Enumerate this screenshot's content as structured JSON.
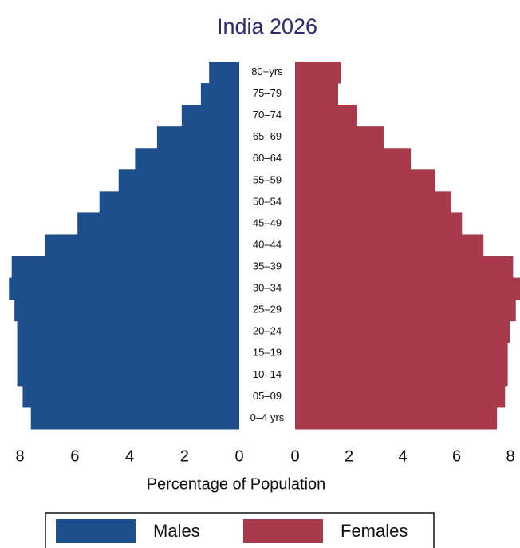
{
  "chart_data": {
    "type": "population_pyramid",
    "title": "India 2026",
    "categories": [
      "80+yrs",
      "75–79",
      "70–74",
      "65–69",
      "60–64",
      "55–59",
      "50–54",
      "45–49",
      "40–44",
      "35–39",
      "30–34",
      "25–29",
      "20–24",
      "15–19",
      "10–14",
      "05–09",
      "0–4 yrs"
    ],
    "series": [
      {
        "name": "Males",
        "color": "#1f4e8c",
        "values": [
          1.1,
          1.4,
          2.1,
          3.0,
          3.8,
          4.4,
          5.1,
          5.9,
          7.1,
          8.3,
          8.4,
          8.2,
          8.1,
          8.1,
          8.1,
          7.9,
          7.6
        ]
      },
      {
        "name": "Females",
        "color": "#a83a4c",
        "values": [
          1.7,
          1.6,
          2.3,
          3.3,
          4.3,
          5.2,
          5.8,
          6.2,
          7.0,
          8.1,
          8.4,
          8.2,
          8.0,
          7.9,
          7.9,
          7.8,
          7.5
        ]
      }
    ],
    "xlabel": "Percentage of Population",
    "xlim": [
      0,
      8
    ],
    "xticks": [
      0,
      2,
      4,
      6,
      8
    ]
  }
}
